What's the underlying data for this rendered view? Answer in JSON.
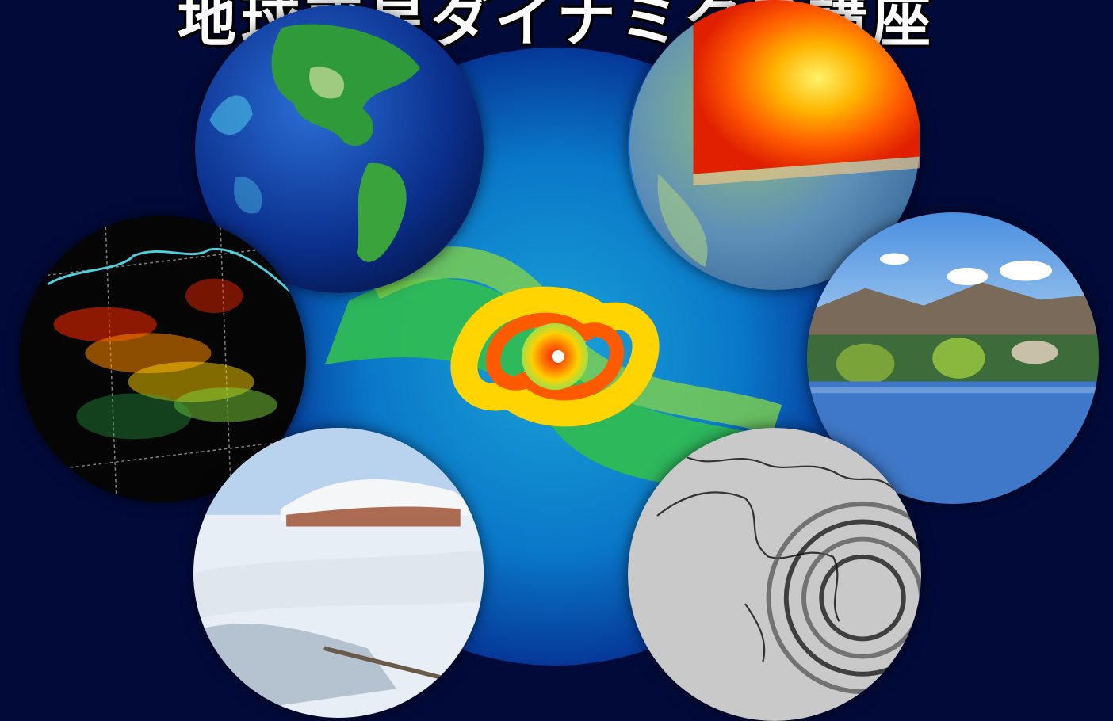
{
  "poster": {
    "title": "地球惑星ダイナミクス講座"
  },
  "panels": [
    {
      "id": "earth-globe",
      "icon": "globe-icon"
    },
    {
      "id": "earth-interior",
      "icon": "earth-core-icon"
    },
    {
      "id": "seismicity-map",
      "icon": "scatter-map-icon"
    },
    {
      "id": "river-landscape",
      "icon": "landscape-icon"
    },
    {
      "id": "snowy-hotspring",
      "icon": "snow-landscape-icon"
    },
    {
      "id": "seismic-wave-globe",
      "icon": "wave-globe-icon"
    }
  ],
  "colors": {
    "background": "#020a3a",
    "swirl_hot": "#ff2a00",
    "swirl_warm": "#ffd400",
    "swirl_cool": "#33c24a",
    "swirl_outer": "#0a78c8"
  }
}
